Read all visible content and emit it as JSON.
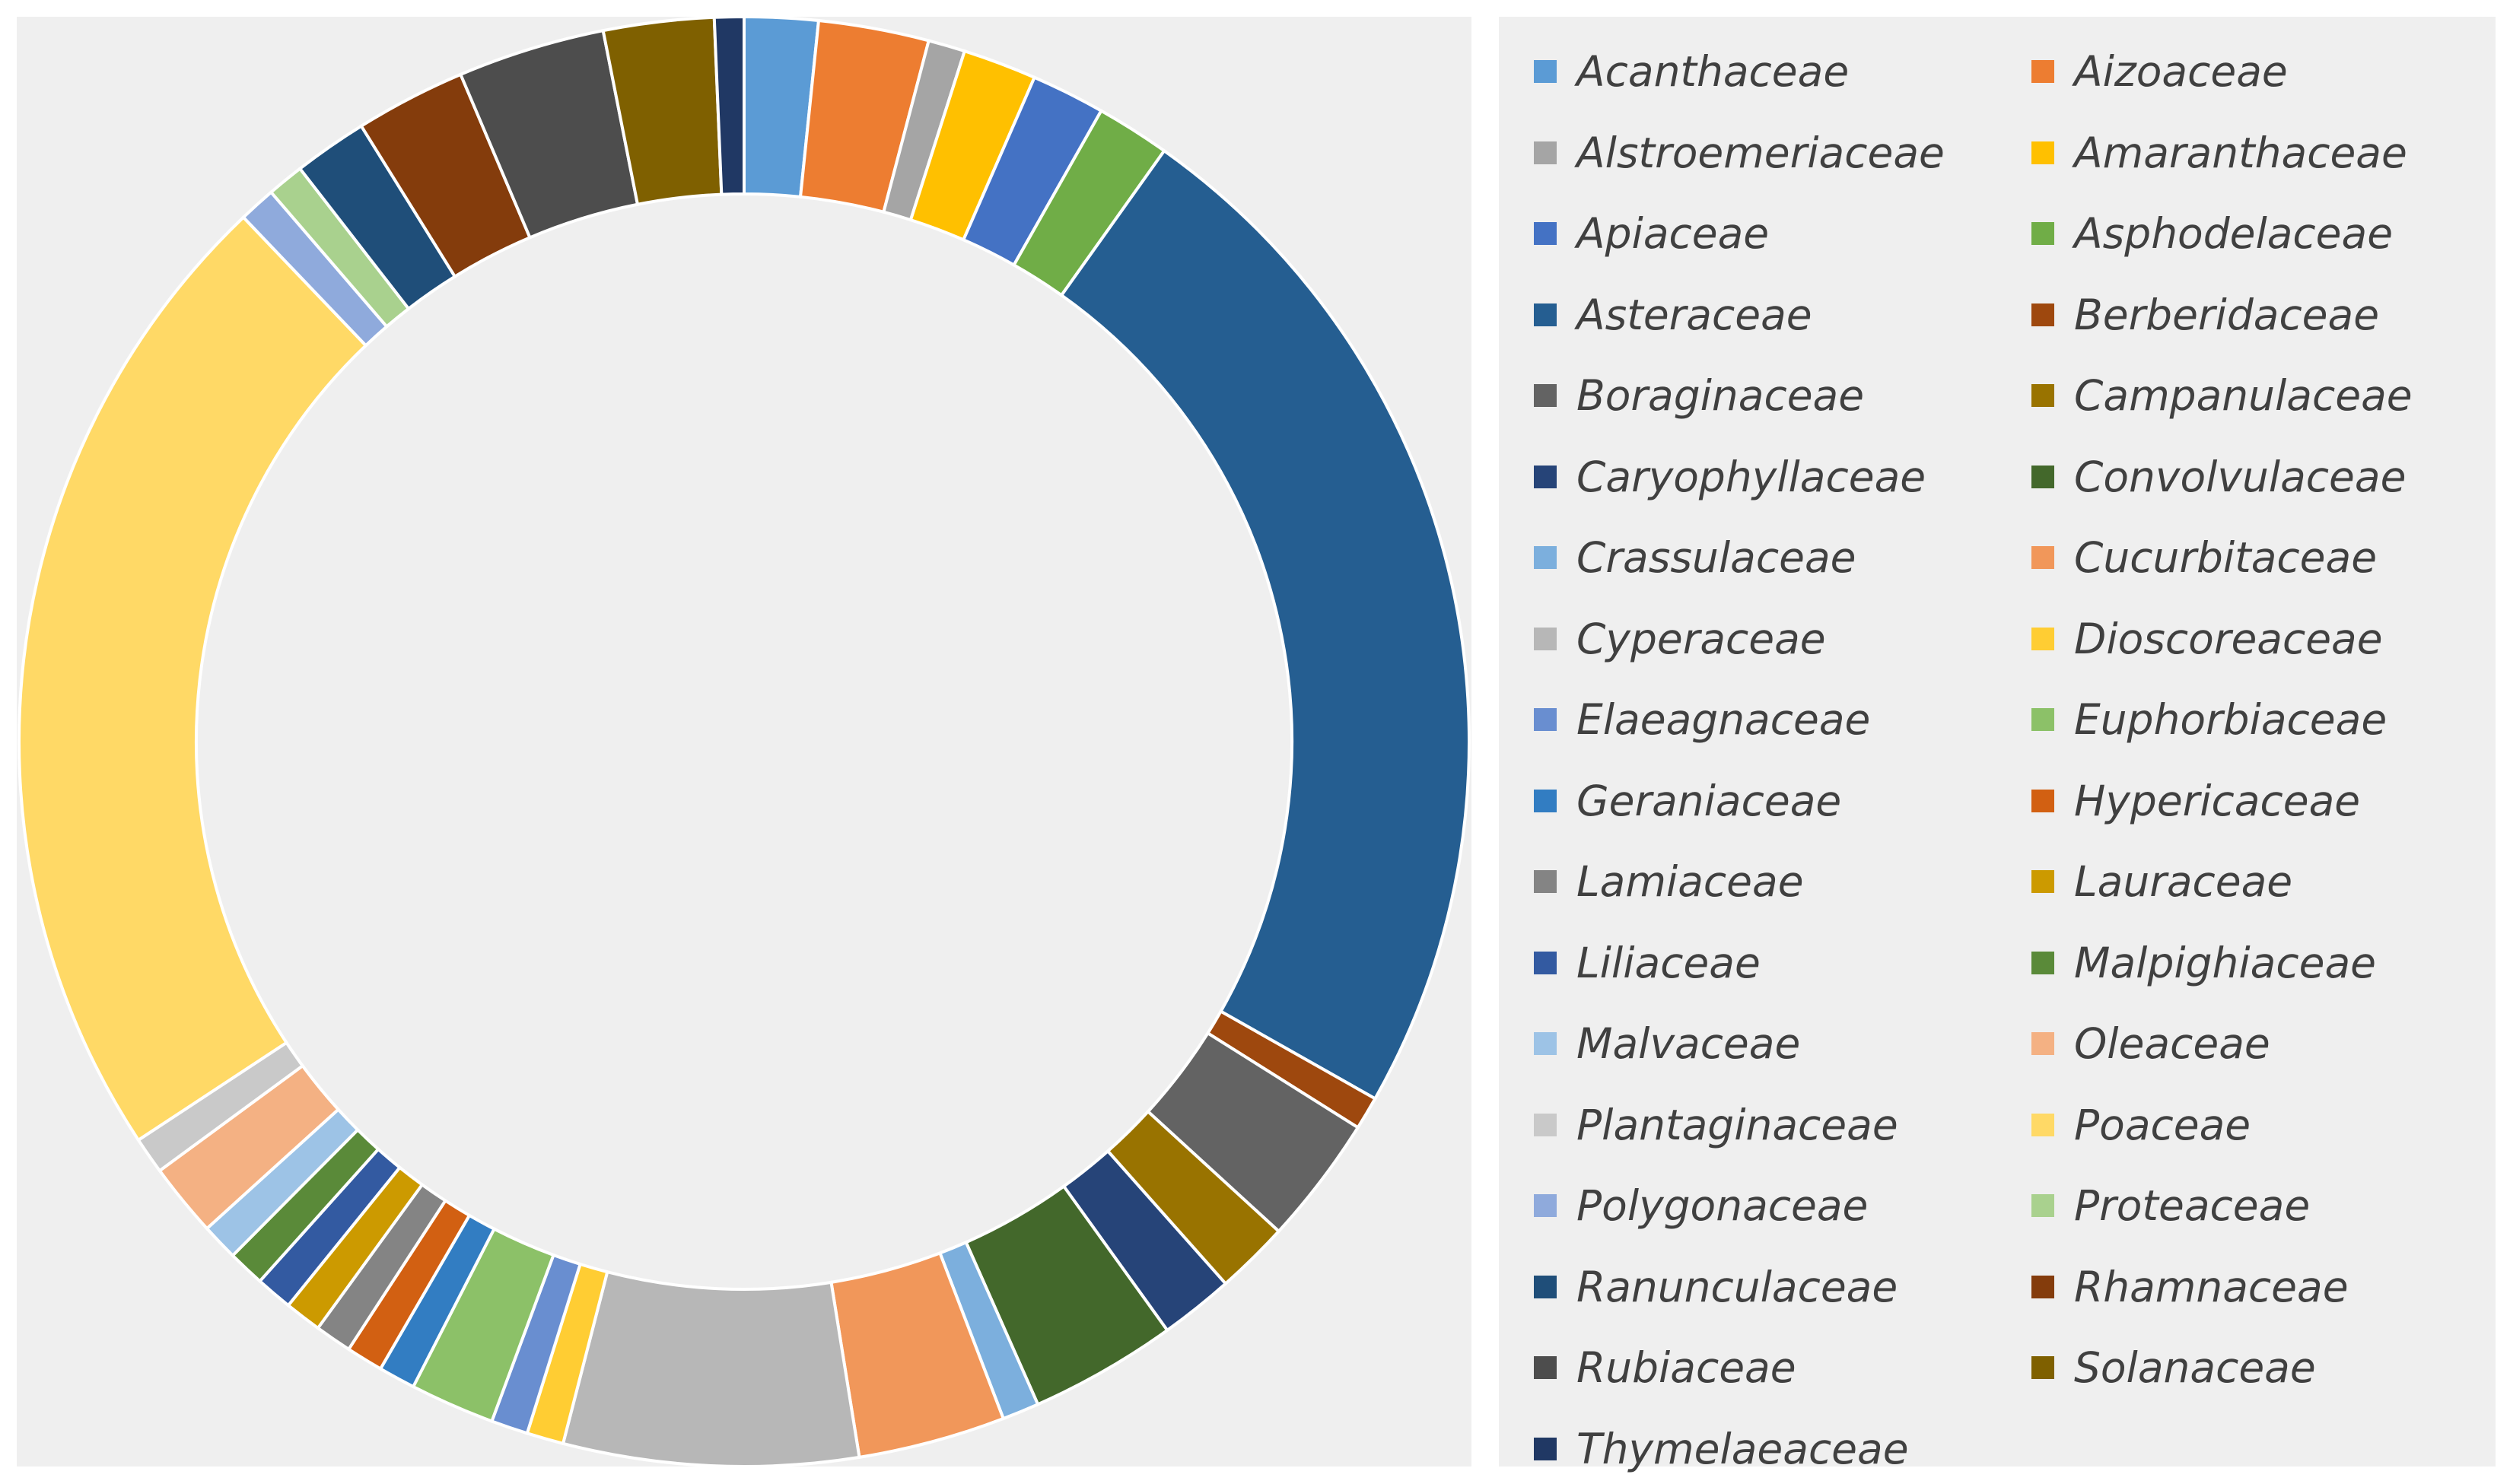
{
  "chart_data": {
    "type": "pie",
    "donut": true,
    "legend_position": "right",
    "series": [
      {
        "name": "Acanthaceae",
        "value": 2.0,
        "color": "#5b9bd5"
      },
      {
        "name": "Aizoaceae",
        "value": 3.0,
        "color": "#ed7d31"
      },
      {
        "name": "Alstroemeriaceae",
        "value": 1.0,
        "color": "#a5a5a5"
      },
      {
        "name": "Amaranthaceae",
        "value": 2.0,
        "color": "#ffc000"
      },
      {
        "name": "Apiaceae",
        "value": 2.0,
        "color": "#4472c4"
      },
      {
        "name": "Asphodelaceae",
        "value": 2.0,
        "color": "#70ad47"
      },
      {
        "name": "Asteraceae",
        "value": 28.5,
        "color": "#255e91"
      },
      {
        "name": "Berberidaceae",
        "value": 0.9,
        "color": "#9e480e"
      },
      {
        "name": "Boraginaceae",
        "value": 3.5,
        "color": "#636363"
      },
      {
        "name": "Campanulaceae",
        "value": 2.0,
        "color": "#997300"
      },
      {
        "name": "Caryophyllaceae",
        "value": 2.0,
        "color": "#264478"
      },
      {
        "name": "Convolvulaceae",
        "value": 4.0,
        "color": "#43682b"
      },
      {
        "name": "Crassulaceae",
        "value": 1.0,
        "color": "#7cafdd"
      },
      {
        "name": "Cucurbitaceae",
        "value": 4.0,
        "color": "#f1975a"
      },
      {
        "name": "Cyperaceae",
        "value": 8.0,
        "color": "#b7b7b7"
      },
      {
        "name": "Dioscoreaceae",
        "value": 1.0,
        "color": "#ffcd33"
      },
      {
        "name": "Elaeagnaceae",
        "value": 1.0,
        "color": "#698ed0"
      },
      {
        "name": "Euphorbiaceae",
        "value": 2.3,
        "color": "#8cc168"
      },
      {
        "name": "Geraniaceae",
        "value": 1.0,
        "color": "#327dc2"
      },
      {
        "name": "Hypericaceae",
        "value": 1.0,
        "color": "#d26012"
      },
      {
        "name": "Lamiaceae",
        "value": 1.0,
        "color": "#848484"
      },
      {
        "name": "Lauraceae",
        "value": 1.0,
        "color": "#cc9a00"
      },
      {
        "name": "Liliaceae",
        "value": 1.0,
        "color": "#335aa1"
      },
      {
        "name": "Malpighiaceae",
        "value": 1.0,
        "color": "#5a8a39"
      },
      {
        "name": "Malvaceae",
        "value": 1.0,
        "color": "#9dc3e6"
      },
      {
        "name": "Oleaceae",
        "value": 2.0,
        "color": "#f4b183"
      },
      {
        "name": "Plantaginaceae",
        "value": 1.0,
        "color": "#c9c9c9"
      },
      {
        "name": "Poaceae",
        "value": 27.0,
        "color": "#ffd966"
      },
      {
        "name": "Polygonaceae",
        "value": 1.0,
        "color": "#8faadc"
      },
      {
        "name": "Proteaceae",
        "value": 1.0,
        "color": "#a9d18e"
      },
      {
        "name": "Ranunculaceae",
        "value": 2.0,
        "color": "#1f4e79"
      },
      {
        "name": "Rhamnaceae",
        "value": 3.0,
        "color": "#843c0c"
      },
      {
        "name": "Rubiaceae",
        "value": 4.0,
        "color": "#4d4d4d"
      },
      {
        "name": "Solanaceae",
        "value": 3.0,
        "color": "#7f6000"
      },
      {
        "name": "Thymelaeaceae",
        "value": 0.8,
        "color": "#203864"
      }
    ]
  }
}
